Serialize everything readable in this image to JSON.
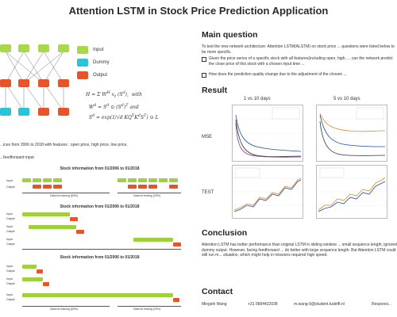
{
  "title": "Attention LSTM in Stock Price Prediction Application",
  "legend": [
    {
      "label": "Input",
      "color": "#a8d94a"
    },
    {
      "label": "Dummy",
      "color": "#29c4d8"
    },
    {
      "label": "Output",
      "color": "#e8532a"
    }
  ],
  "left": {
    "data_text": "...ices from 2006 to 2018 with features : open price, high price, low price,",
    "feedforward_text": "...feedforward input",
    "timelines": [
      {
        "title": "Stock information from 01/2006 to 01/2018",
        "left_label": "Data for training (60%)",
        "right_label": "Data for testing (20%)"
      },
      {
        "title": "Stock information from 01/2006 to 01/2018",
        "left_label": "",
        "right_label": ""
      },
      {
        "title": "Stock information from 01/2006 to 01/2018",
        "left_label": "Data for training (60%)",
        "right_label": "Data for testing (20%)"
      }
    ]
  },
  "main_question": {
    "heading": "Main question",
    "intro": "To test the new network architecture: Attention LSTM(ALSTM) on stock price ... questions were listed below to be more specific.",
    "items": [
      "Given the price series of a specific stock with all features(including open, high, ... can the network predict the close price of this stock with a chosen input time ...",
      "How does the prediction quality change due to the adjustment of the chosen ..."
    ]
  },
  "result": {
    "heading": "Result",
    "col1": "1 vs 10 days",
    "col2": "5 vs 10 days",
    "row1": "MSE",
    "row2": "TEST"
  },
  "conclusion": {
    "heading": "Conclusion",
    "text": "Attention LSTM has better performance than original LSTM in sliding window ... small sequence length, ignored dummy output. However, facing feedforward ... do better with large sequence length. But Attention LSTM could still run m... situation, which might help in missions required high speed."
  },
  "contact": {
    "heading": "Contact",
    "name": "Mingshi Wang",
    "phone": "+31 0684422038",
    "email": "m.wang-9@student.tudelft.nl",
    "extra": "Responsi..."
  }
}
